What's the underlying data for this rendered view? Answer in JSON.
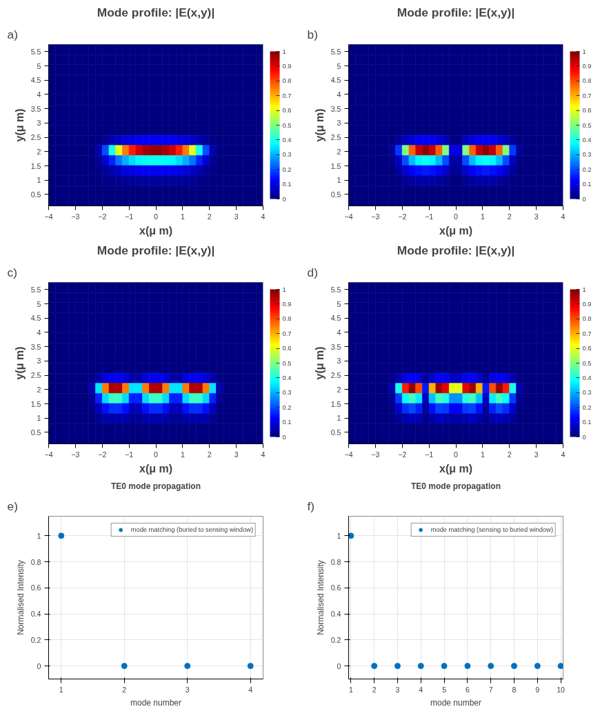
{
  "chart_data": [
    {
      "type": "heatmap",
      "title": "Mode profile: |E(x,y)|",
      "xlabel": "x(μ m)",
      "ylabel": "y(μ m)",
      "annotations": [
        "a)"
      ],
      "xlim": [
        -4,
        4
      ],
      "ylim": [
        0.1,
        5.75
      ],
      "xticks": [
        -4,
        -3,
        -2,
        -1,
        0,
        1,
        2,
        3,
        4
      ],
      "yticks": [
        0.5,
        1,
        1.5,
        2,
        2.5,
        3,
        3.5,
        4,
        4.5,
        5,
        5.5
      ],
      "clim": [
        0,
        1
      ],
      "cticks": [
        0,
        0.1,
        0.2,
        0.3,
        0.4,
        0.5,
        0.6,
        0.7,
        0.8,
        0.9,
        1
      ],
      "cells": [
        [
          0,
          0,
          0,
          0,
          0,
          0,
          0,
          0,
          0,
          0,
          0,
          0,
          0,
          0,
          0,
          0,
          0,
          0,
          0,
          0,
          0,
          0,
          0,
          0,
          0,
          0,
          0,
          0,
          0,
          0,
          0,
          0
        ],
        [
          0,
          0,
          0,
          0,
          0,
          0,
          0,
          0,
          0,
          0,
          0,
          0,
          0,
          0,
          0,
          0,
          0,
          0,
          0,
          0,
          0,
          0,
          0,
          0,
          0,
          0,
          0,
          0,
          0,
          0,
          0,
          0
        ],
        [
          0,
          0,
          0,
          0,
          0,
          0,
          0,
          0,
          0,
          0,
          0,
          0,
          0,
          0,
          0,
          0,
          0,
          0,
          0,
          0,
          0,
          0,
          0,
          0,
          0,
          0,
          0,
          0,
          0,
          0,
          0,
          0
        ],
        [
          0,
          0,
          0,
          0,
          0,
          0,
          0,
          0,
          0,
          0,
          0,
          0,
          0,
          0,
          0,
          0,
          0,
          0,
          0,
          0,
          0,
          0,
          0,
          0,
          0,
          0,
          0,
          0,
          0,
          0,
          0,
          0
        ],
        [
          0,
          0,
          0,
          0,
          0,
          0,
          0,
          0,
          0,
          0,
          0,
          0,
          0,
          0,
          0,
          0,
          0,
          0,
          0,
          0,
          0,
          0,
          0,
          0,
          0,
          0,
          0,
          0,
          0,
          0,
          0,
          0
        ],
        [
          0,
          0,
          0,
          0,
          0,
          0,
          0,
          0,
          0,
          0,
          0,
          0,
          0,
          0,
          0,
          0,
          0,
          0,
          0,
          0,
          0,
          0,
          0,
          0,
          0,
          0,
          0,
          0,
          0,
          0,
          0,
          0
        ],
        [
          0,
          0,
          0,
          0,
          0,
          0,
          0,
          0,
          0,
          0,
          0,
          0,
          0,
          0,
          0,
          0,
          0,
          0,
          0,
          0,
          0,
          0,
          0,
          0,
          0,
          0,
          0,
          0,
          0,
          0,
          0,
          0
        ],
        [
          0,
          0,
          0,
          0,
          0,
          0,
          0,
          0,
          0,
          0,
          0,
          0,
          0,
          0,
          0,
          0,
          0,
          0,
          0,
          0,
          0,
          0,
          0,
          0,
          0,
          0,
          0,
          0,
          0,
          0,
          0,
          0
        ],
        [
          0,
          0,
          0,
          0,
          0,
          0,
          0,
          0,
          0,
          0,
          0,
          0,
          0,
          0,
          0,
          0,
          0,
          0,
          0,
          0,
          0,
          0,
          0,
          0,
          0,
          0,
          0,
          0,
          0,
          0,
          0,
          0
        ],
        [
          0,
          0,
          0,
          0,
          0,
          0,
          0,
          0.01,
          0.02,
          0.05,
          0.07,
          0.09,
          0.1,
          0.11,
          0.12,
          0.12,
          0.12,
          0.12,
          0.11,
          0.1,
          0.09,
          0.07,
          0.05,
          0.02,
          0.01,
          0,
          0,
          0,
          0,
          0,
          0,
          0
        ],
        [
          0,
          0,
          0,
          0,
          0,
          0,
          0,
          0.05,
          0.2,
          0.4,
          0.6,
          0.75,
          0.85,
          0.92,
          0.96,
          0.98,
          0.98,
          0.96,
          0.92,
          0.85,
          0.75,
          0.6,
          0.4,
          0.2,
          0.05,
          0,
          0,
          0,
          0,
          0,
          0,
          0
        ],
        [
          0,
          0,
          0,
          0,
          0,
          0,
          0,
          0.02,
          0.08,
          0.16,
          0.24,
          0.3,
          0.34,
          0.37,
          0.38,
          0.39,
          0.39,
          0.38,
          0.37,
          0.34,
          0.3,
          0.24,
          0.16,
          0.08,
          0.02,
          0,
          0,
          0,
          0,
          0,
          0,
          0
        ],
        [
          0,
          0,
          0,
          0,
          0,
          0,
          0,
          0.01,
          0.02,
          0.05,
          0.07,
          0.09,
          0.1,
          0.11,
          0.12,
          0.12,
          0.12,
          0.12,
          0.11,
          0.1,
          0.09,
          0.07,
          0.05,
          0.02,
          0.01,
          0,
          0,
          0,
          0,
          0,
          0,
          0
        ],
        [
          0,
          0,
          0,
          0,
          0,
          0,
          0,
          0,
          0.01,
          0.01,
          0.02,
          0.02,
          0.03,
          0.03,
          0.03,
          0.03,
          0.03,
          0.03,
          0.03,
          0.03,
          0.02,
          0.02,
          0.01,
          0.01,
          0,
          0,
          0,
          0,
          0,
          0,
          0,
          0
        ],
        [
          0,
          0,
          0,
          0,
          0,
          0,
          0,
          0,
          0,
          0,
          0,
          0,
          0,
          0,
          0,
          0,
          0,
          0,
          0,
          0,
          0,
          0,
          0,
          0,
          0,
          0,
          0,
          0,
          0,
          0,
          0,
          0
        ],
        [
          0,
          0,
          0,
          0,
          0,
          0,
          0,
          0,
          0,
          0,
          0,
          0,
          0,
          0,
          0,
          0,
          0,
          0,
          0,
          0,
          0,
          0,
          0,
          0,
          0,
          0,
          0,
          0,
          0,
          0,
          0,
          0
        ]
      ]
    },
    {
      "type": "heatmap",
      "title": "Mode profile: |E(x,y)|",
      "xlabel": "x(μ m)",
      "ylabel": "y(μ m)",
      "annotations": [
        "b)"
      ],
      "xlim": [
        -4,
        4
      ],
      "ylim": [
        0.1,
        5.75
      ],
      "xticks": [
        -4,
        -3,
        -2,
        -1,
        0,
        1,
        2,
        3,
        4
      ],
      "yticks": [
        0.5,
        1,
        1.5,
        2,
        2.5,
        3,
        3.5,
        4,
        4.5,
        5,
        5.5
      ],
      "clim": [
        0,
        1
      ],
      "cticks": [
        0,
        0.1,
        0.2,
        0.3,
        0.4,
        0.5,
        0.6,
        0.7,
        0.8,
        0.9,
        1
      ],
      "cells": [
        [
          0,
          0,
          0,
          0,
          0,
          0,
          0,
          0,
          0,
          0,
          0,
          0,
          0,
          0,
          0,
          0,
          0,
          0,
          0,
          0,
          0,
          0,
          0,
          0,
          0,
          0,
          0,
          0,
          0,
          0,
          0,
          0
        ],
        [
          0,
          0,
          0,
          0,
          0,
          0,
          0,
          0,
          0,
          0,
          0,
          0,
          0,
          0,
          0,
          0,
          0,
          0,
          0,
          0,
          0,
          0,
          0,
          0,
          0,
          0,
          0,
          0,
          0,
          0,
          0,
          0
        ],
        [
          0,
          0,
          0,
          0,
          0,
          0,
          0,
          0,
          0,
          0,
          0,
          0,
          0,
          0,
          0,
          0,
          0,
          0,
          0,
          0,
          0,
          0,
          0,
          0,
          0,
          0,
          0,
          0,
          0,
          0,
          0,
          0
        ],
        [
          0,
          0,
          0,
          0,
          0,
          0,
          0,
          0,
          0,
          0,
          0,
          0,
          0,
          0,
          0,
          0,
          0,
          0,
          0,
          0,
          0,
          0,
          0,
          0,
          0,
          0,
          0,
          0,
          0,
          0,
          0,
          0
        ],
        [
          0,
          0,
          0,
          0,
          0,
          0,
          0,
          0,
          0,
          0,
          0,
          0,
          0,
          0,
          0,
          0,
          0,
          0,
          0,
          0,
          0,
          0,
          0,
          0,
          0,
          0,
          0,
          0,
          0,
          0,
          0,
          0
        ],
        [
          0,
          0,
          0,
          0,
          0,
          0,
          0,
          0,
          0,
          0,
          0,
          0,
          0,
          0,
          0,
          0,
          0,
          0,
          0,
          0,
          0,
          0,
          0,
          0,
          0,
          0,
          0,
          0,
          0,
          0,
          0,
          0
        ],
        [
          0,
          0,
          0,
          0,
          0,
          0,
          0,
          0,
          0,
          0,
          0,
          0,
          0,
          0,
          0,
          0,
          0,
          0,
          0,
          0,
          0,
          0,
          0,
          0,
          0,
          0,
          0,
          0,
          0,
          0,
          0,
          0
        ],
        [
          0,
          0,
          0,
          0,
          0,
          0,
          0,
          0,
          0,
          0,
          0,
          0,
          0,
          0,
          0,
          0,
          0,
          0,
          0,
          0,
          0,
          0,
          0,
          0,
          0,
          0,
          0,
          0,
          0,
          0,
          0,
          0
        ],
        [
          0,
          0,
          0,
          0,
          0,
          0,
          0,
          0,
          0,
          0,
          0,
          0,
          0,
          0,
          0,
          0,
          0,
          0,
          0,
          0,
          0,
          0,
          0,
          0,
          0,
          0,
          0,
          0,
          0,
          0,
          0,
          0
        ],
        [
          0,
          0,
          0,
          0,
          0,
          0,
          0,
          0.02,
          0.06,
          0.09,
          0.11,
          0.12,
          0.11,
          0.09,
          0.06,
          0.01,
          0.01,
          0.06,
          0.09,
          0.11,
          0.12,
          0.11,
          0.09,
          0.06,
          0.02,
          0,
          0,
          0,
          0,
          0,
          0,
          0
        ],
        [
          0,
          0,
          0,
          0,
          0,
          0,
          0.03,
          0.18,
          0.5,
          0.78,
          0.93,
          0.98,
          0.93,
          0.78,
          0.5,
          0.1,
          0.1,
          0.5,
          0.78,
          0.93,
          0.98,
          0.93,
          0.78,
          0.5,
          0.18,
          0.03,
          0,
          0,
          0,
          0,
          0,
          0
        ],
        [
          0,
          0,
          0,
          0,
          0,
          0,
          0.01,
          0.07,
          0.2,
          0.31,
          0.37,
          0.39,
          0.37,
          0.31,
          0.2,
          0.04,
          0.04,
          0.2,
          0.31,
          0.37,
          0.39,
          0.37,
          0.31,
          0.2,
          0.07,
          0.01,
          0,
          0,
          0,
          0,
          0,
          0
        ],
        [
          0,
          0,
          0,
          0,
          0,
          0,
          0,
          0.03,
          0.08,
          0.12,
          0.14,
          0.15,
          0.14,
          0.12,
          0.08,
          0.02,
          0.02,
          0.08,
          0.12,
          0.14,
          0.15,
          0.14,
          0.12,
          0.08,
          0.03,
          0,
          0,
          0,
          0,
          0,
          0,
          0
        ],
        [
          0,
          0,
          0,
          0,
          0,
          0,
          0,
          0.01,
          0.02,
          0.03,
          0.04,
          0.04,
          0.04,
          0.03,
          0.02,
          0,
          0,
          0.02,
          0.03,
          0.04,
          0.04,
          0.04,
          0.03,
          0.02,
          0.01,
          0,
          0,
          0,
          0,
          0,
          0,
          0
        ],
        [
          0,
          0,
          0,
          0,
          0,
          0,
          0,
          0,
          0,
          0,
          0,
          0,
          0,
          0,
          0,
          0,
          0,
          0,
          0,
          0,
          0,
          0,
          0,
          0,
          0,
          0,
          0,
          0,
          0,
          0,
          0,
          0
        ],
        [
          0,
          0,
          0,
          0,
          0,
          0,
          0,
          0,
          0,
          0,
          0,
          0,
          0,
          0,
          0,
          0,
          0,
          0,
          0,
          0,
          0,
          0,
          0,
          0,
          0,
          0,
          0,
          0,
          0,
          0,
          0,
          0
        ]
      ]
    },
    {
      "type": "heatmap",
      "title": "Mode profile: |E(x,y)|",
      "xlabel": "x(μ m)",
      "ylabel": "y(μ m)",
      "annotations": [
        "c)"
      ],
      "xlim": [
        -4,
        4
      ],
      "ylim": [
        0.1,
        5.75
      ],
      "xticks": [
        -4,
        -3,
        -2,
        -1,
        0,
        1,
        2,
        3,
        4
      ],
      "yticks": [
        0.5,
        1,
        1.5,
        2,
        2.5,
        3,
        3.5,
        4,
        4.5,
        5,
        5.5
      ],
      "clim": [
        0,
        1
      ],
      "cticks": [
        0,
        0.1,
        0.2,
        0.3,
        0.4,
        0.5,
        0.6,
        0.7,
        0.8,
        0.9,
        1
      ],
      "cells": [
        [
          0,
          0,
          0,
          0,
          0,
          0,
          0,
          0,
          0,
          0,
          0,
          0,
          0,
          0,
          0,
          0,
          0,
          0,
          0,
          0,
          0,
          0,
          0,
          0,
          0,
          0,
          0,
          0,
          0,
          0,
          0,
          0
        ],
        [
          0,
          0,
          0,
          0,
          0,
          0,
          0,
          0,
          0,
          0,
          0,
          0,
          0,
          0,
          0,
          0,
          0,
          0,
          0,
          0,
          0,
          0,
          0,
          0,
          0,
          0,
          0,
          0,
          0,
          0,
          0,
          0
        ],
        [
          0,
          0,
          0,
          0,
          0,
          0,
          0,
          0,
          0,
          0,
          0,
          0,
          0,
          0,
          0,
          0,
          0,
          0,
          0,
          0,
          0,
          0,
          0,
          0,
          0,
          0,
          0,
          0,
          0,
          0,
          0,
          0
        ],
        [
          0,
          0,
          0,
          0,
          0,
          0,
          0,
          0,
          0,
          0,
          0,
          0,
          0,
          0,
          0,
          0,
          0,
          0,
          0,
          0,
          0,
          0,
          0,
          0,
          0,
          0,
          0,
          0,
          0,
          0,
          0,
          0
        ],
        [
          0,
          0,
          0,
          0,
          0,
          0,
          0,
          0,
          0,
          0,
          0,
          0,
          0,
          0,
          0,
          0,
          0,
          0,
          0,
          0,
          0,
          0,
          0,
          0,
          0,
          0,
          0,
          0,
          0,
          0,
          0,
          0
        ],
        [
          0,
          0,
          0,
          0,
          0,
          0,
          0,
          0,
          0,
          0,
          0,
          0,
          0,
          0,
          0,
          0,
          0,
          0,
          0,
          0,
          0,
          0,
          0,
          0,
          0,
          0,
          0,
          0,
          0,
          0,
          0,
          0
        ],
        [
          0,
          0,
          0,
          0,
          0,
          0,
          0,
          0,
          0,
          0,
          0,
          0,
          0,
          0,
          0,
          0,
          0,
          0,
          0,
          0,
          0,
          0,
          0,
          0,
          0,
          0,
          0,
          0,
          0,
          0,
          0,
          0
        ],
        [
          0,
          0,
          0,
          0,
          0,
          0,
          0,
          0,
          0,
          0,
          0,
          0,
          0,
          0,
          0,
          0,
          0,
          0,
          0,
          0,
          0,
          0,
          0,
          0,
          0,
          0,
          0,
          0,
          0,
          0,
          0,
          0
        ],
        [
          0,
          0,
          0,
          0,
          0,
          0,
          0,
          0,
          0,
          0,
          0,
          0,
          0,
          0,
          0,
          0,
          0,
          0,
          0,
          0,
          0,
          0,
          0,
          0,
          0,
          0,
          0,
          0,
          0,
          0,
          0,
          0
        ],
        [
          0,
          0,
          0,
          0,
          0,
          0,
          0.01,
          0.04,
          0.09,
          0.11,
          0.11,
          0.09,
          0.04,
          0.04,
          0.09,
          0.11,
          0.11,
          0.09,
          0.04,
          0.04,
          0.09,
          0.11,
          0.11,
          0.09,
          0.04,
          0.01,
          0,
          0,
          0,
          0,
          0,
          0
        ],
        [
          0,
          0,
          0,
          0,
          0,
          0,
          0.05,
          0.35,
          0.75,
          0.95,
          0.95,
          0.75,
          0.35,
          0.35,
          0.75,
          0.95,
          0.95,
          0.75,
          0.35,
          0.35,
          0.75,
          0.95,
          0.95,
          0.75,
          0.35,
          0.05,
          0,
          0,
          0,
          0,
          0,
          0
        ],
        [
          0,
          0,
          0,
          0,
          0,
          0,
          0.02,
          0.16,
          0.34,
          0.43,
          0.43,
          0.34,
          0.16,
          0.16,
          0.34,
          0.43,
          0.43,
          0.34,
          0.16,
          0.16,
          0.34,
          0.43,
          0.43,
          0.34,
          0.16,
          0.02,
          0,
          0,
          0,
          0,
          0,
          0
        ],
        [
          0,
          0,
          0,
          0,
          0,
          0,
          0.01,
          0.06,
          0.14,
          0.17,
          0.17,
          0.14,
          0.06,
          0.06,
          0.14,
          0.17,
          0.17,
          0.14,
          0.06,
          0.06,
          0.14,
          0.17,
          0.17,
          0.14,
          0.06,
          0.01,
          0,
          0,
          0,
          0,
          0,
          0
        ],
        [
          0,
          0,
          0,
          0,
          0,
          0,
          0,
          0.02,
          0.04,
          0.05,
          0.05,
          0.04,
          0.02,
          0.02,
          0.04,
          0.05,
          0.05,
          0.04,
          0.02,
          0.02,
          0.04,
          0.05,
          0.05,
          0.04,
          0.02,
          0,
          0,
          0,
          0,
          0,
          0,
          0
        ],
        [
          0,
          0,
          0,
          0,
          0,
          0,
          0,
          0,
          0,
          0,
          0,
          0,
          0,
          0,
          0,
          0,
          0,
          0,
          0,
          0,
          0,
          0,
          0,
          0,
          0,
          0,
          0,
          0,
          0,
          0,
          0,
          0
        ],
        [
          0,
          0,
          0,
          0,
          0,
          0,
          0,
          0,
          0,
          0,
          0,
          0,
          0,
          0,
          0,
          0,
          0,
          0,
          0,
          0,
          0,
          0,
          0,
          0,
          0,
          0,
          0,
          0,
          0,
          0,
          0,
          0
        ]
      ]
    },
    {
      "type": "heatmap",
      "title": "Mode profile: |E(x,y)|",
      "xlabel": "x(μ m)",
      "ylabel": "y(μ m)",
      "annotations": [
        "d)"
      ],
      "xlim": [
        -4,
        4
      ],
      "ylim": [
        0.1,
        5.75
      ],
      "xticks": [
        -4,
        -3,
        -2,
        -1,
        0,
        1,
        2,
        3,
        4
      ],
      "yticks": [
        0.5,
        1,
        1.5,
        2,
        2.5,
        3,
        3.5,
        4,
        4.5,
        5,
        5.5
      ],
      "clim": [
        0,
        1
      ],
      "cticks": [
        0,
        0.1,
        0.2,
        0.3,
        0.4,
        0.5,
        0.6,
        0.7,
        0.8,
        0.9,
        1
      ],
      "cells": [
        [
          0,
          0,
          0,
          0,
          0,
          0,
          0,
          0,
          0,
          0,
          0,
          0,
          0,
          0,
          0,
          0,
          0,
          0,
          0,
          0,
          0,
          0,
          0,
          0,
          0,
          0,
          0,
          0,
          0,
          0,
          0,
          0
        ],
        [
          0,
          0,
          0,
          0,
          0,
          0,
          0,
          0,
          0,
          0,
          0,
          0,
          0,
          0,
          0,
          0,
          0,
          0,
          0,
          0,
          0,
          0,
          0,
          0,
          0,
          0,
          0,
          0,
          0,
          0,
          0,
          0
        ],
        [
          0,
          0,
          0,
          0,
          0,
          0,
          0,
          0,
          0,
          0,
          0,
          0,
          0,
          0,
          0,
          0,
          0,
          0,
          0,
          0,
          0,
          0,
          0,
          0,
          0,
          0,
          0,
          0,
          0,
          0,
          0,
          0
        ],
        [
          0,
          0,
          0,
          0,
          0,
          0,
          0,
          0,
          0,
          0,
          0,
          0,
          0,
          0,
          0,
          0,
          0,
          0,
          0,
          0,
          0,
          0,
          0,
          0,
          0,
          0,
          0,
          0,
          0,
          0,
          0,
          0
        ],
        [
          0,
          0,
          0,
          0,
          0,
          0,
          0,
          0,
          0,
          0,
          0,
          0,
          0,
          0,
          0,
          0,
          0,
          0,
          0,
          0,
          0,
          0,
          0,
          0,
          0,
          0,
          0,
          0,
          0,
          0,
          0,
          0
        ],
        [
          0,
          0,
          0,
          0,
          0,
          0,
          0,
          0,
          0,
          0,
          0,
          0,
          0,
          0,
          0,
          0,
          0,
          0,
          0,
          0,
          0,
          0,
          0,
          0,
          0,
          0,
          0,
          0,
          0,
          0,
          0,
          0
        ],
        [
          0,
          0,
          0,
          0,
          0,
          0,
          0,
          0,
          0,
          0,
          0,
          0,
          0,
          0,
          0,
          0,
          0,
          0,
          0,
          0,
          0,
          0,
          0,
          0,
          0,
          0,
          0,
          0,
          0,
          0,
          0,
          0
        ],
        [
          0,
          0,
          0,
          0,
          0,
          0,
          0,
          0,
          0,
          0,
          0,
          0,
          0,
          0,
          0,
          0,
          0,
          0,
          0,
          0,
          0,
          0,
          0,
          0,
          0,
          0,
          0,
          0,
          0,
          0,
          0,
          0
        ],
        [
          0,
          0,
          0,
          0,
          0,
          0,
          0,
          0,
          0,
          0,
          0,
          0,
          0,
          0,
          0,
          0,
          0,
          0,
          0,
          0,
          0,
          0,
          0,
          0,
          0,
          0,
          0,
          0,
          0,
          0,
          0,
          0
        ],
        [
          0,
          0,
          0,
          0,
          0,
          0,
          0.01,
          0.05,
          0.1,
          0.12,
          0.1,
          0.02,
          0.08,
          0.12,
          0.11,
          0.07,
          0.07,
          0.11,
          0.12,
          0.08,
          0.02,
          0.1,
          0.12,
          0.1,
          0.05,
          0.01,
          0,
          0,
          0,
          0,
          0,
          0
        ],
        [
          0,
          0,
          0,
          0,
          0,
          0,
          0.05,
          0.4,
          0.85,
          0.98,
          0.8,
          0.15,
          0.7,
          0.97,
          0.9,
          0.6,
          0.6,
          0.9,
          0.97,
          0.7,
          0.15,
          0.8,
          0.98,
          0.85,
          0.4,
          0.05,
          0,
          0,
          0,
          0,
          0,
          0
        ],
        [
          0,
          0,
          0,
          0,
          0,
          0,
          0.02,
          0.18,
          0.38,
          0.44,
          0.36,
          0.07,
          0.32,
          0.44,
          0.41,
          0.27,
          0.27,
          0.41,
          0.44,
          0.32,
          0.07,
          0.36,
          0.44,
          0.38,
          0.18,
          0.02,
          0,
          0,
          0,
          0,
          0,
          0
        ],
        [
          0,
          0,
          0,
          0,
          0,
          0,
          0.01,
          0.08,
          0.17,
          0.2,
          0.16,
          0.03,
          0.14,
          0.19,
          0.18,
          0.12,
          0.12,
          0.18,
          0.19,
          0.14,
          0.03,
          0.16,
          0.2,
          0.17,
          0.08,
          0.01,
          0,
          0,
          0,
          0,
          0,
          0
        ],
        [
          0,
          0,
          0,
          0,
          0,
          0,
          0,
          0.02,
          0.05,
          0.06,
          0.05,
          0.01,
          0.04,
          0.06,
          0.05,
          0.04,
          0.04,
          0.05,
          0.06,
          0.04,
          0.01,
          0.05,
          0.06,
          0.05,
          0.02,
          0,
          0,
          0,
          0,
          0,
          0,
          0
        ],
        [
          0,
          0,
          0,
          0,
          0,
          0,
          0,
          0,
          0,
          0,
          0,
          0,
          0,
          0,
          0,
          0,
          0,
          0,
          0,
          0,
          0,
          0,
          0,
          0,
          0,
          0,
          0,
          0,
          0,
          0,
          0,
          0
        ],
        [
          0,
          0,
          0,
          0,
          0,
          0,
          0,
          0,
          0,
          0,
          0,
          0,
          0,
          0,
          0,
          0,
          0,
          0,
          0,
          0,
          0,
          0,
          0,
          0,
          0,
          0,
          0,
          0,
          0,
          0,
          0,
          0
        ]
      ]
    },
    {
      "type": "scatter",
      "title": "TE0 mode propagation",
      "xlabel": "mode number",
      "ylabel": "Normalised Intensity",
      "annotations": [
        "e)"
      ],
      "xlim": [
        0.8,
        4.2
      ],
      "ylim": [
        -0.1,
        1.15
      ],
      "xticks": [
        1,
        2,
        3,
        4
      ],
      "yticks": [
        0,
        0.2,
        0.4,
        0.6,
        0.8,
        1
      ],
      "grid": true,
      "legend": "top right",
      "marker": "circle",
      "x": [
        1,
        2,
        3,
        4
      ],
      "series": [
        {
          "name": "mode matching (buried to sensing window)",
          "color": "#0072bd",
          "values": [
            1,
            0,
            0,
            0
          ]
        }
      ]
    },
    {
      "type": "scatter",
      "title": "TE0 mode propagation",
      "xlabel": "mode number",
      "ylabel": "Normalised Intensity",
      "annotations": [
        "f)"
      ],
      "xlim": [
        0.9,
        10.1
      ],
      "ylim": [
        -0.1,
        1.15
      ],
      "xticks": [
        1,
        2,
        3,
        4,
        5,
        6,
        7,
        8,
        9,
        10
      ],
      "yticks": [
        0,
        0.2,
        0.4,
        0.6,
        0.8,
        1
      ],
      "grid": true,
      "legend": "top right",
      "marker": "circle",
      "x": [
        1,
        2,
        3,
        4,
        5,
        6,
        7,
        8,
        9,
        10
      ],
      "series": [
        {
          "name": "mode matching (sensing to buried window)",
          "color": "#0072bd",
          "values": [
            1,
            0,
            0,
            0,
            0,
            0,
            0,
            0,
            0,
            0
          ]
        }
      ]
    }
  ]
}
